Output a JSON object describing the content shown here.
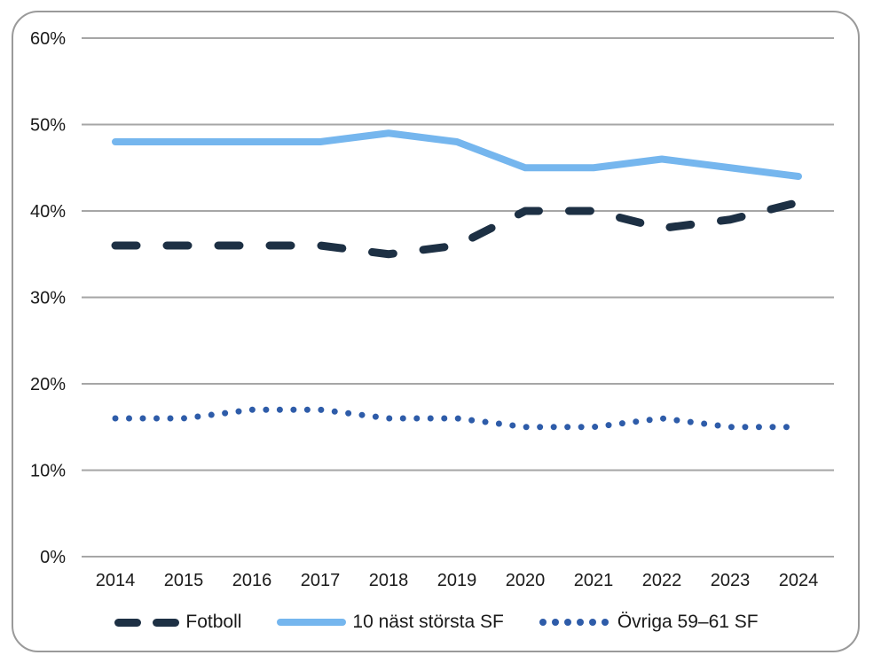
{
  "chart_data": {
    "type": "line",
    "title": "",
    "x": [
      2014,
      2015,
      2016,
      2017,
      2018,
      2019,
      2020,
      2021,
      2022,
      2023,
      2024
    ],
    "series": [
      {
        "name": "Fotboll",
        "values": [
          36,
          36,
          36,
          36,
          35,
          36,
          40,
          40,
          38,
          39,
          41
        ],
        "color": "#1d3044",
        "style": "dashed"
      },
      {
        "name": "10 näst största SF",
        "values": [
          48,
          48,
          48,
          48,
          49,
          48,
          45,
          45,
          46,
          45,
          44
        ],
        "color": "#75b6ee",
        "style": "solid"
      },
      {
        "name": "Övriga 59–61 SF",
        "values": [
          16,
          16,
          17,
          17,
          16,
          16,
          15,
          15,
          16,
          15,
          15
        ],
        "color": "#2e5ca9",
        "style": "dotted"
      }
    ],
    "ylim": [
      0,
      60
    ],
    "ytick_step": 10,
    "ytick_labels": [
      "0%",
      "10%",
      "20%",
      "30%",
      "40%",
      "50%",
      "60%"
    ],
    "xtick_labels": [
      "2014",
      "2015",
      "2016",
      "2017",
      "2018",
      "2019",
      "2020",
      "2021",
      "2022",
      "2023",
      "2024"
    ],
    "grid": true,
    "legend_position": "bottom",
    "unit": "%"
  },
  "colors": {
    "grid": "#a6a6a6",
    "axis_text": "#1a1a1a",
    "panel_border": "#9a9a9a",
    "background": "#ffffff"
  }
}
